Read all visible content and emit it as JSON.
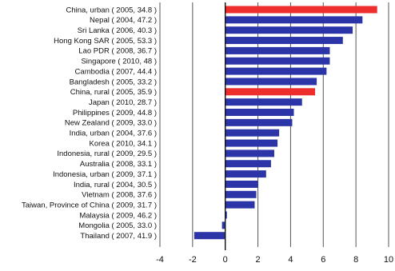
{
  "chart_data": {
    "type": "bar",
    "orientation": "horizontal",
    "categories": [
      "China, urban ( 2005, 34.8 )",
      "Nepal ( 2004, 47.2 )",
      "Sri Lanka ( 2006, 40.3 )",
      "Hong Kong SAR ( 2005, 53.3 )",
      "Lao PDR ( 2008, 36.7 )",
      "Singapore ( 2010, 48 )",
      "Cambodia ( 2007, 44.4 )",
      "Bangladesh ( 2005, 33.2 )",
      "China, rural ( 2005, 35.9 )",
      "Japan ( 2010, 28.7 )",
      "Philippines ( 2009, 44.8 )",
      "New Zealand ( 2009, 33.0 )",
      "India, urban ( 2004, 37.6 )",
      "Korea ( 2010, 34.1 )",
      "Indonesia, rural ( 2009, 29.5 )",
      "Australia ( 2008, 33.1 )",
      "Indonesia, urban ( 2009, 37.1 )",
      "India, rural ( 2004, 30.5 )",
      "Vietnam ( 2008, 37.6 )",
      "Taiwan, Province of China ( 2009, 31.7 )",
      "Malaysia ( 2009, 46.2 )",
      "Mongolia ( 2005, 33.0 )",
      "Thailand ( 2007, 41.9 )"
    ],
    "values": [
      9.3,
      8.4,
      7.8,
      7.2,
      6.4,
      6.4,
      6.2,
      5.6,
      5.5,
      4.7,
      4.2,
      4.1,
      3.3,
      3.2,
      3.0,
      2.8,
      2.5,
      2.0,
      1.9,
      1.8,
      0.1,
      -0.2,
      -1.9
    ],
    "highlighted": [
      "China, urban ( 2005, 34.8 )",
      "China, rural ( 2005, 35.9 )"
    ],
    "colors": {
      "default": "#2b35a8",
      "highlight": "#ee2d2d",
      "axis": "#111111",
      "grid": "#555555"
    },
    "xlim": [
      -4,
      10
    ],
    "xticks": [
      "-4",
      "-2",
      "0",
      "2",
      "4",
      "6",
      "8",
      "10"
    ],
    "grid": "vertical",
    "title": "",
    "xlabel": "",
    "ylabel": ""
  }
}
